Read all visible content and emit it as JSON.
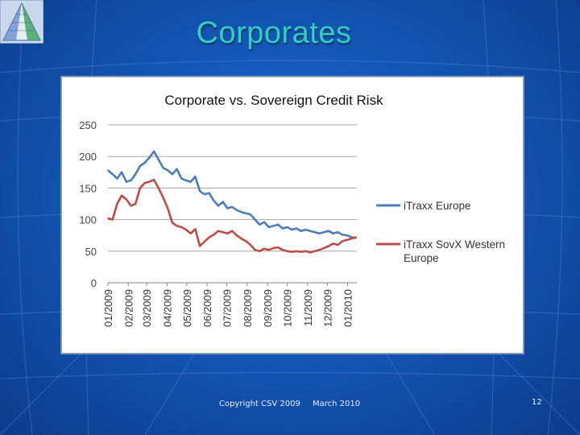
{
  "slide": {
    "title": "Corporates",
    "footer_copyright": "Copyright CSV 2009",
    "footer_date": "March 2010",
    "page_number": "12"
  },
  "colors": {
    "itraxx_europe": "#4a7ebb",
    "sovx": "#be4b48",
    "title_teal": "#2fd0c0"
  },
  "chart_data": {
    "type": "line",
    "title": "Corporate vs. Sovereign Credit Risk",
    "xlabel": "",
    "ylabel": "",
    "ylim": [
      0,
      250
    ],
    "yticks": [
      0,
      50,
      100,
      150,
      200,
      250
    ],
    "x_tick_labels": [
      "01/2009",
      "02/2009",
      "03/2009",
      "04/2009",
      "05/2009",
      "06/2009",
      "07/2009",
      "08/2009",
      "09/2009",
      "10/2009",
      "11/2009",
      "12/2009",
      "01/2010"
    ],
    "grid": true,
    "legend_position": "right",
    "x": [
      "2009-01-01",
      "2009-01-08",
      "2009-01-15",
      "2009-01-22",
      "2009-01-29",
      "2009-02-05",
      "2009-02-12",
      "2009-02-19",
      "2009-02-26",
      "2009-03-05",
      "2009-03-12",
      "2009-03-19",
      "2009-03-26",
      "2009-04-02",
      "2009-04-09",
      "2009-04-16",
      "2009-04-23",
      "2009-04-30",
      "2009-05-07",
      "2009-05-14",
      "2009-05-21",
      "2009-05-28",
      "2009-06-04",
      "2009-06-11",
      "2009-06-18",
      "2009-06-25",
      "2009-07-02",
      "2009-07-09",
      "2009-07-16",
      "2009-07-23",
      "2009-07-30",
      "2009-08-06",
      "2009-08-13",
      "2009-08-20",
      "2009-08-27",
      "2009-09-03",
      "2009-09-10",
      "2009-09-17",
      "2009-09-24",
      "2009-10-01",
      "2009-10-08",
      "2009-10-15",
      "2009-10-22",
      "2009-10-29",
      "2009-11-05",
      "2009-11-12",
      "2009-11-19",
      "2009-11-26",
      "2009-12-03",
      "2009-12-10",
      "2009-12-17",
      "2009-12-24",
      "2009-12-31",
      "2010-01-07",
      "2010-01-14"
    ],
    "series": [
      {
        "name": "iTraxx Europe",
        "color": "#4a7ebb",
        "values": [
          178,
          172,
          165,
          175,
          160,
          162,
          172,
          185,
          190,
          198,
          208,
          195,
          182,
          178,
          172,
          180,
          165,
          162,
          160,
          168,
          145,
          140,
          142,
          130,
          122,
          128,
          118,
          120,
          115,
          112,
          110,
          108,
          100,
          92,
          96,
          88,
          90,
          92,
          86,
          88,
          84,
          86,
          82,
          84,
          82,
          80,
          78,
          80,
          82,
          78,
          80,
          76,
          75,
          72,
          71
        ]
      },
      {
        "name": "iTraxx SovX Western Europe",
        "color": "#be4b48",
        "values": [
          102,
          100,
          125,
          138,
          132,
          122,
          125,
          150,
          158,
          160,
          163,
          150,
          135,
          118,
          95,
          90,
          88,
          84,
          78,
          85,
          58,
          65,
          72,
          76,
          82,
          80,
          78,
          82,
          75,
          70,
          66,
          60,
          52,
          50,
          54,
          52,
          55,
          56,
          52,
          50,
          49,
          50,
          49,
          50,
          48,
          50,
          52,
          55,
          58,
          62,
          60,
          66,
          68,
          70,
          72
        ]
      }
    ]
  }
}
